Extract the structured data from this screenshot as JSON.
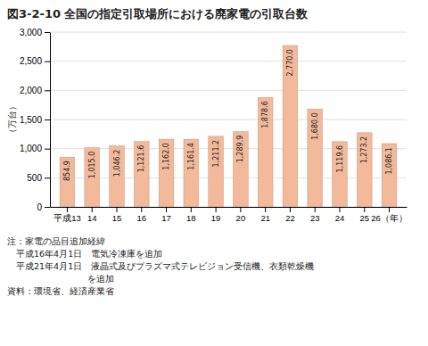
{
  "chart_data": {
    "type": "bar",
    "title": "図3-2-10 全国の指定引取場所における廃家電の引取台数",
    "ylabel": "（万台）",
    "categories": [
      "平成13",
      "14",
      "15",
      "16",
      "17",
      "18",
      "19",
      "20",
      "21",
      "22",
      "23",
      "24",
      "25",
      "26（年）"
    ],
    "values": [
      854.9,
      1015.0,
      1046.2,
      1121.6,
      1162.0,
      1161.4,
      1211.2,
      1289.9,
      1878.6,
      2770.0,
      1680.0,
      1119.6,
      1273.2,
      1086.1
    ],
    "value_labels": [
      "854.9",
      "1,015.0",
      "1,046.2",
      "1,121.6",
      "1,162.0",
      "1,161.4",
      "1,211.2",
      "1,289.9",
      "1,878.6",
      "2,770.0",
      "1,680.0",
      "1,119.6",
      "1,273.2",
      "1,086.1"
    ],
    "data_labels": true,
    "color": "#F2B99B",
    "ylim": [
      0,
      3000
    ],
    "yticks": [
      0,
      500,
      {
        "value": 1000,
        "label": "1,000"
      },
      {
        "value": 1500,
        "label": "1,500"
      },
      {
        "value": 2000,
        "label": "2,000"
      },
      {
        "value": 2500,
        "label": "2,500"
      },
      {
        "value": 3000,
        "label": "3,000"
      }
    ],
    "grid": true,
    "annotations": [
      "注：家電の品目追加経緯",
      "　平成16年4月1日　電気冷凍庫を追加",
      "　平成21年4月1日　液晶式及びプラズマ式テレビジョン受信機、衣類乾燥機",
      "　　　　　　　　　を追加",
      "資料：環境省、経済産業省"
    ]
  }
}
